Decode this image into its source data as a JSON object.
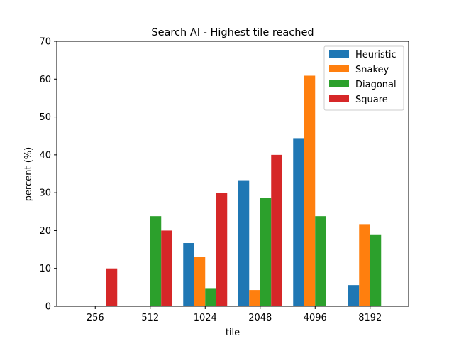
{
  "chart_data": {
    "type": "bar",
    "title": "Search AI - Highest tile reached",
    "xlabel": "tile",
    "ylabel": "percent (%)",
    "categories": [
      "256",
      "512",
      "1024",
      "2048",
      "4096",
      "8192"
    ],
    "ylim": [
      0,
      70
    ],
    "yticks": [
      0,
      10,
      20,
      30,
      40,
      50,
      60,
      70
    ],
    "grid": false,
    "legend_position": "top-right",
    "series": [
      {
        "name": "Heuristic",
        "color": "#1f77b4",
        "values": [
          0,
          0,
          16.7,
          33.3,
          44.4,
          5.6
        ]
      },
      {
        "name": "Snakey",
        "color": "#ff7f0e",
        "values": [
          0,
          0,
          13.0,
          4.3,
          60.9,
          21.7
        ]
      },
      {
        "name": "Diagonal",
        "color": "#2ca02c",
        "values": [
          0,
          23.8,
          4.8,
          28.6,
          23.8,
          19.0
        ]
      },
      {
        "name": "Square",
        "color": "#d62728",
        "values": [
          10.0,
          20.0,
          30.0,
          40.0,
          0,
          0
        ]
      }
    ]
  }
}
